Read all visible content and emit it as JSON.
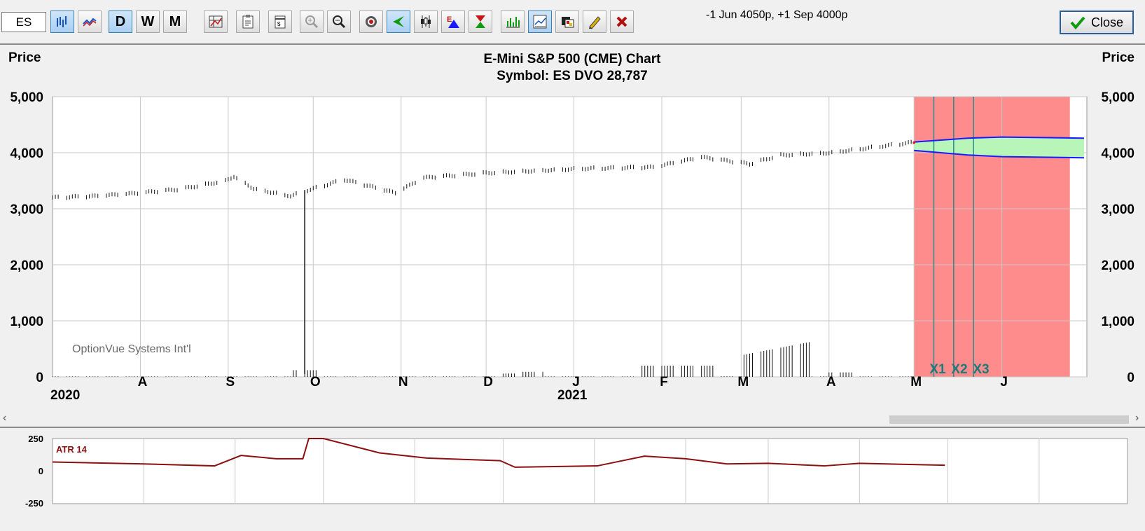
{
  "toolbar": {
    "symbol_value": "ES",
    "period_buttons": [
      "D",
      "W",
      "M"
    ],
    "legs_text": "-1 Jun 4050p, +1 Sep 4000p",
    "close_label": "Close"
  },
  "chart": {
    "title": "E-Mini S&P 500 (CME) Chart",
    "subtitle": "Symbol: ES  DVO 28,787",
    "left_axis_label": "Price",
    "right_axis_label": "Price",
    "watermark": "OptionVue Systems Int'l",
    "expiration_markers": [
      "X1",
      "X2",
      "X3"
    ],
    "year_labels": [
      "2020",
      "2021"
    ],
    "colors": {
      "projection_zone": "#ff8c8c",
      "profit_zone": "#b8f5b8",
      "expiry_line": "#2d8a88",
      "band_line": "#1a1aff",
      "atr_line": "#8b1010"
    }
  },
  "atr": {
    "label": "ATR 14",
    "ticks": [
      "250",
      "0",
      "-250"
    ]
  },
  "chart_data": [
    {
      "type": "bar",
      "title": "E-Mini S&P 500 (CME) Chart",
      "ylabel": "Price",
      "ylim": [
        0,
        5000
      ],
      "yticks": [
        "5,000",
        "4,000",
        "3,000",
        "2,000",
        "1,000",
        "0"
      ],
      "xticks": [
        "A",
        "S",
        "O",
        "N",
        "D",
        "J",
        "F",
        "M",
        "A",
        "M",
        "J"
      ],
      "price_points": [
        {
          "x": "2020-07-01",
          "y": 3200
        },
        {
          "x": "2020-07-15",
          "y": 3220
        },
        {
          "x": "2020-08-01",
          "y": 3280
        },
        {
          "x": "2020-08-15",
          "y": 3350
        },
        {
          "x": "2020-08-31",
          "y": 3500
        },
        {
          "x": "2020-09-03",
          "y": 3580
        },
        {
          "x": "2020-09-10",
          "y": 3360
        },
        {
          "x": "2020-09-23",
          "y": 3230
        },
        {
          "x": "2020-10-01",
          "y": 3360
        },
        {
          "x": "2020-10-12",
          "y": 3520
        },
        {
          "x": "2020-10-30",
          "y": 3280
        },
        {
          "x": "2020-11-09",
          "y": 3550
        },
        {
          "x": "2020-12-01",
          "y": 3640
        },
        {
          "x": "2021-01-04",
          "y": 3720
        },
        {
          "x": "2021-01-29",
          "y": 3740
        },
        {
          "x": "2021-02-15",
          "y": 3920
        },
        {
          "x": "2021-03-04",
          "y": 3800
        },
        {
          "x": "2021-03-15",
          "y": 3960
        },
        {
          "x": "2021-04-01",
          "y": 4000
        },
        {
          "x": "2021-04-30",
          "y": 4180
        }
      ],
      "spike": {
        "x": "2020-09-28",
        "y": 3330
      },
      "volume_bars": [
        {
          "x": "2020-09-28",
          "y": 120
        },
        {
          "x": "2020-12-10",
          "y": 60
        },
        {
          "x": "2020-12-17",
          "y": 90
        },
        {
          "x": "2021-01-29",
          "y": 150
        },
        {
          "x": "2021-02-10",
          "y": 240
        },
        {
          "x": "2021-02-24",
          "y": 300
        },
        {
          "x": "2021-03-05",
          "y": 420
        },
        {
          "x": "2021-03-19",
          "y": 620
        },
        {
          "x": "2021-04-05",
          "y": 80
        }
      ],
      "band_upper": [
        {
          "x": "2021-05-01",
          "y": 4190
        },
        {
          "x": "2021-05-20",
          "y": 4260
        },
        {
          "x": "2021-06-01",
          "y": 4280
        },
        {
          "x": "2021-06-30",
          "y": 4260
        }
      ],
      "band_lower": [
        {
          "x": "2021-05-01",
          "y": 4040
        },
        {
          "x": "2021-05-20",
          "y": 3960
        },
        {
          "x": "2021-06-01",
          "y": 3930
        },
        {
          "x": "2021-06-30",
          "y": 3910
        }
      ]
    },
    {
      "type": "line",
      "title": "ATR 14",
      "ylim": [
        -250,
        250
      ],
      "yticks": [
        "250",
        "0",
        "-250"
      ],
      "points": [
        {
          "x": "2020-07-01",
          "y": 70
        },
        {
          "x": "2020-08-01",
          "y": 55
        },
        {
          "x": "2020-08-25",
          "y": 40
        },
        {
          "x": "2020-09-03",
          "y": 120
        },
        {
          "x": "2020-09-15",
          "y": 95
        },
        {
          "x": "2020-09-24",
          "y": 95
        },
        {
          "x": "2020-09-26",
          "y": 250
        },
        {
          "x": "2020-10-01",
          "y": 250
        },
        {
          "x": "2020-10-20",
          "y": 140
        },
        {
          "x": "2020-11-05",
          "y": 100
        },
        {
          "x": "2020-11-30",
          "y": 80
        },
        {
          "x": "2020-12-05",
          "y": 30
        },
        {
          "x": "2021-01-02",
          "y": 40
        },
        {
          "x": "2021-01-18",
          "y": 115
        },
        {
          "x": "2021-02-01",
          "y": 95
        },
        {
          "x": "2021-02-15",
          "y": 55
        },
        {
          "x": "2021-03-01",
          "y": 60
        },
        {
          "x": "2021-03-20",
          "y": 40
        },
        {
          "x": "2021-04-01",
          "y": 60
        },
        {
          "x": "2021-04-30",
          "y": 45
        }
      ]
    }
  ]
}
